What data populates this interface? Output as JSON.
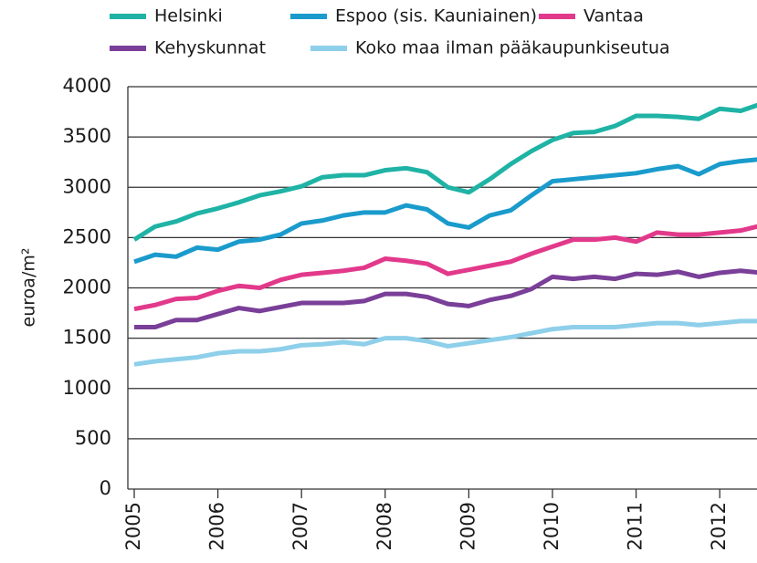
{
  "chart_data": {
    "type": "line",
    "y_label": "euroa/m²",
    "categories": [
      "2005",
      null,
      null,
      null,
      "2006",
      null,
      null,
      null,
      "2007",
      null,
      null,
      null,
      "2008",
      null,
      null,
      null,
      "2009",
      null,
      null,
      null,
      "2010",
      null,
      null,
      null,
      "2011",
      null,
      null,
      null,
      "2012",
      null,
      null
    ],
    "series": [
      {
        "name": "Helsinki",
        "color": "#1fb3a5",
        "values": [
          2480,
          2610,
          2660,
          2740,
          2790,
          2850,
          2920,
          2960,
          3010,
          3100,
          3120,
          3120,
          3170,
          3190,
          3150,
          3000,
          2950,
          3080,
          3230,
          3360,
          3470,
          3540,
          3550,
          3610,
          3710,
          3710,
          3700,
          3680,
          3780,
          3760,
          3830
        ]
      },
      {
        "name": "Espoo (sis. Kauniainen)",
        "color": "#1a9bcc",
        "values": [
          2260,
          2330,
          2310,
          2400,
          2380,
          2460,
          2480,
          2530,
          2640,
          2670,
          2720,
          2750,
          2750,
          2820,
          2780,
          2640,
          2600,
          2720,
          2770,
          2920,
          3060,
          3080,
          3100,
          3120,
          3140,
          3180,
          3210,
          3130,
          3230,
          3260,
          3280
        ]
      },
      {
        "name": "Vantaa",
        "color": "#e2398b",
        "values": [
          1790,
          1830,
          1890,
          1900,
          1970,
          2020,
          2000,
          2080,
          2130,
          2150,
          2170,
          2200,
          2290,
          2270,
          2240,
          2140,
          2180,
          2220,
          2260,
          2340,
          2410,
          2480,
          2480,
          2500,
          2460,
          2550,
          2530,
          2530,
          2550,
          2570,
          2620
        ]
      },
      {
        "name": "Kehyskunnat",
        "color": "#7a3f98",
        "values": [
          1610,
          1610,
          1680,
          1680,
          1740,
          1800,
          1770,
          1810,
          1850,
          1850,
          1850,
          1870,
          1940,
          1940,
          1910,
          1840,
          1820,
          1880,
          1920,
          1990,
          2110,
          2090,
          2110,
          2090,
          2140,
          2130,
          2160,
          2110,
          2150,
          2170,
          2150
        ]
      },
      {
        "name": "Koko maa ilman pääkaupunkiseutua",
        "color": "#8ecfea",
        "values": [
          1240,
          1270,
          1290,
          1310,
          1350,
          1370,
          1370,
          1390,
          1430,
          1440,
          1460,
          1440,
          1500,
          1500,
          1470,
          1420,
          1450,
          1480,
          1510,
          1550,
          1590,
          1610,
          1610,
          1610,
          1630,
          1650,
          1650,
          1630,
          1650,
          1670,
          1670
        ]
      }
    ],
    "ylim": [
      0,
      4000
    ],
    "yticks": [
      0,
      500,
      1000,
      1500,
      2000,
      2500,
      3000,
      3500,
      4000
    ],
    "grid": true
  }
}
